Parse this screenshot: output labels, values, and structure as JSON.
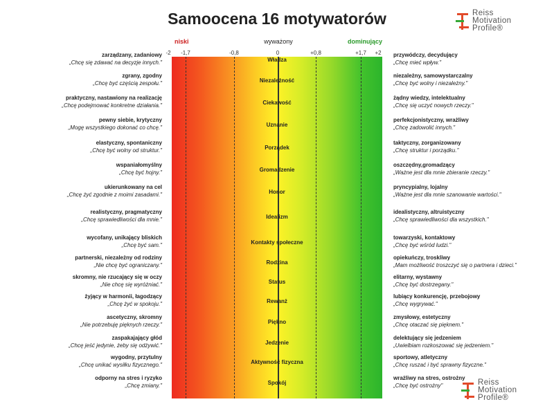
{
  "title": "Samoocena 16 motywatorów",
  "logo": [
    "Reiss",
    "Motivation",
    "Profile®"
  ],
  "scale": {
    "low": "niski",
    "mid": "wyważony",
    "high": "dominujący",
    "low_color": "#cc2222",
    "high_color": "#2a9a2a"
  },
  "ticks": [
    "-2",
    "-1,7",
    "-0,8",
    "0",
    "+0,8",
    "+1,7",
    "+2"
  ],
  "motivators": [
    {
      "name": "Władza",
      "left_title": "zarządzany, zadaniowy",
      "left_quote": "„Chcę się zdawać na decyzje innych.\"",
      "right_title": "przywódczy, decydujący",
      "right_quote": "„Chcę mieć wpływ.\""
    },
    {
      "name": "Niezależność",
      "left_title": "zgrany, zgodny",
      "left_quote": "„Chcę być częścią zespołu.\"",
      "right_title": "niezależny, samowystarczalny",
      "right_quote": "„Chcę być wolny i niezależny.\""
    },
    {
      "name": "Ciekawość",
      "left_title": "praktyczny, nastawiony na realizację",
      "left_quote": "„Chcę podejmować konkretne działania.\"",
      "right_title": "żądny wiedzy, intelektualny",
      "right_quote": "„Chcę się uczyć nowych rzeczy.\""
    },
    {
      "name": "Uznanie",
      "left_title": "pewny siebie, krytyczny",
      "left_quote": "„Mogę wszystkiego dokonać co chcę.\"",
      "right_title": "perfekcjonistyczny, wrażliwy",
      "right_quote": "„Chcę zadowolić innych.\""
    },
    {
      "name": "Porządek",
      "left_title": "elastyczny, spontaniczny",
      "left_quote": "„Chcę być wolny od struktur.\"",
      "right_title": "taktyczny, zorganizowany",
      "right_quote": "„Chcę struktur i porządku.\""
    },
    {
      "name": "Gromadzenie",
      "left_title": "wspaniałomyślny",
      "left_quote": "„Chcę być hojny.\"",
      "right_title": "oszczędny,gromadzący",
      "right_quote": "„Ważne jest dla mnie zbieranie rzeczy.\""
    },
    {
      "name": "Honor",
      "left_title": "ukierunkowany na cel",
      "left_quote": "„Chcę żyć zgodnie z moimi  zasadami.\"",
      "right_title": "pryncypialny, lojalny",
      "right_quote": "„Ważne jest dla mnie szanowanie wartości.\""
    },
    {
      "name": "Idealizm",
      "left_title": "realistyczny, pragmatyczny",
      "left_quote": "„Chcę sprawiedliwości dla mnie.\"",
      "right_title": "idealistyczny, altruistyczny",
      "right_quote": "„Chcę sprawiedliwości dla wszystkich.\""
    },
    {
      "name": "Kontakty społeczne",
      "left_title": "wycofany, unikający bliskich",
      "left_quote": "„Chcę być sam.\"",
      "right_title": "towarzyski, kontaktowy",
      "right_quote": "„Chcę być wśród ludzi.\""
    },
    {
      "name": "Rodzina",
      "left_title": "partnerski, niezależny od rodziny",
      "left_quote": "„Nie chcę być ograniczany.\"",
      "right_title": "opiekuńczy, troskliwy",
      "right_quote": "„Mam możliwość troszczyć się o partnera i dzieci.\""
    },
    {
      "name": "Status",
      "left_title": "skromny, nie rzucający się w oczy",
      "left_quote": "„Nie chcę się wyróżniać.\"",
      "right_title": "elitarny, wystawny",
      "right_quote": "„Chcę być dostrzegany.\""
    },
    {
      "name": "Rewanż",
      "left_title": "żyjący w harmonii, łagodzący",
      "left_quote": "„Chcę żyć w spokoju.\"",
      "right_title": "lubiący konkurencję, przebojowy",
      "right_quote": "„Chcę wygrywać.\""
    },
    {
      "name": "Piękno",
      "left_title": "ascetyczny, skromny",
      "left_quote": "„Nie potrzebuję pięknych rzeczy.\"",
      "right_title": "zmysłowy, estetyczny",
      "right_quote": "„Chcę otaczać się pięknem.\""
    },
    {
      "name": "Jedzenie",
      "left_title": "zaspakajający głód",
      "left_quote": "„Chcę jeść jedynie, żeby się odżywić.\"",
      "right_title": "delektujący się jedzeniem",
      "right_quote": "„Uwielbiam rozkoszować się jedzeniem.\""
    },
    {
      "name": "Aktywność fizyczna",
      "left_title": "wygodny, przytulny",
      "left_quote": "„Chcę unikać wysiłku fizycznego.\"",
      "right_title": "sportowy, atletyczny",
      "right_quote": "„Chcę ruszać i być sprawny fizyczne.\""
    },
    {
      "name": "Spokój",
      "left_title": "odporny na stres i ryzyko",
      "left_quote": "„Chcę zmiany.\"",
      "right_title": "wrażliwy na stres, ostrożny",
      "right_quote": "„Chcę być ostrożny\""
    }
  ]
}
